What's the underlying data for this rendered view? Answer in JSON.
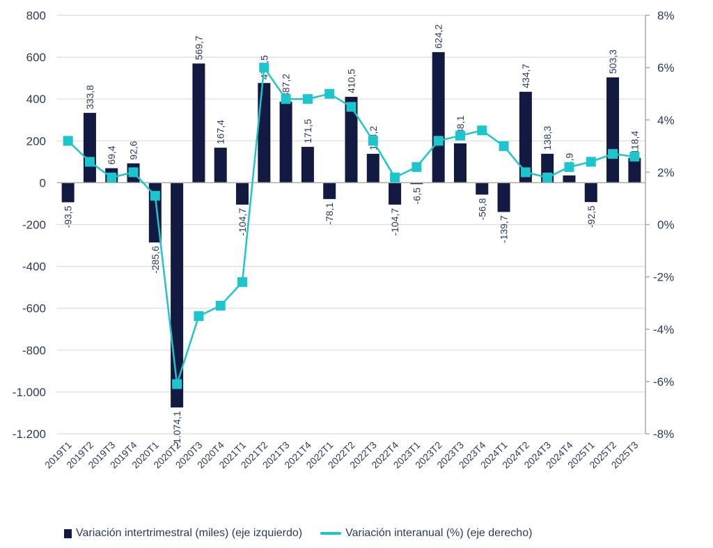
{
  "chart_data": {
    "type": "bar+line",
    "title": "",
    "categories": [
      "2019T1",
      "2019T2",
      "2019T3",
      "2019T4",
      "2020T1",
      "2020T2",
      "2020T3",
      "2020T4",
      "2021T1",
      "2021T2",
      "2021T3",
      "2021T4",
      "2022T1",
      "2022T2",
      "2022T3",
      "2022T4",
      "2023T1",
      "2023T2",
      "2023T3",
      "2023T4",
      "2024T1",
      "2024T2",
      "2024T3",
      "2024T4",
      "2025T1",
      "2025T2",
      "2025T3"
    ],
    "series": [
      {
        "name": "Variación intertrimestral (miles) (eje izquierdo)",
        "type": "bar",
        "axis": "left",
        "color": "#131a42",
        "values": [
          -93.5,
          333.8,
          69.4,
          92.6,
          -285.6,
          -1074.1,
          569.7,
          167.4,
          -104.7,
          476.5,
          387.2,
          171.5,
          -78.1,
          410.5,
          138.2,
          -104.7,
          -6.5,
          624.2,
          188.1,
          -56.8,
          -139.7,
          434.7,
          138.3,
          34.9,
          -92.5,
          503.3,
          118.4
        ],
        "labels": [
          "-93,5",
          "333,8",
          "69,4",
          "92,6",
          "-285,6",
          "-1.074,1",
          "569,7",
          "167,4",
          "-104,7",
          "476,5",
          "387,2",
          "171,5",
          "-78,1",
          "410,5",
          "138,2",
          "-104,7",
          "-6,5",
          "624,2",
          "188,1",
          "-56,8",
          "-139,7",
          "434,7",
          "138,3",
          "34,9",
          "-92,5",
          "503,3",
          "118,4"
        ]
      },
      {
        "name": "Variación interanual (%) (eje derecho)",
        "type": "line",
        "axis": "right",
        "color": "#1cc6cc",
        "values": [
          3.2,
          2.4,
          1.8,
          2.0,
          1.1,
          -6.1,
          -3.5,
          -3.1,
          -2.2,
          6.0,
          4.8,
          4.8,
          5.0,
          4.5,
          3.2,
          1.8,
          2.2,
          3.2,
          3.4,
          3.6,
          3.0,
          2.0,
          1.8,
          2.2,
          2.4,
          2.7,
          2.6
        ]
      }
    ],
    "left_axis": {
      "ylim": [
        -1200,
        800
      ],
      "ticks": [
        800,
        600,
        400,
        200,
        0,
        -200,
        -400,
        -600,
        -800,
        -1000,
        -1200
      ],
      "tick_labels": [
        "800",
        "600",
        "400",
        "200",
        "0",
        "-200",
        "-400",
        "-600",
        "-800",
        "-1.000",
        "-1.200"
      ]
    },
    "right_axis": {
      "ylim": [
        -8,
        8
      ],
      "ticks": [
        8,
        6,
        4,
        2,
        0,
        -2,
        -4,
        -6,
        -8
      ],
      "tick_labels": [
        "8%",
        "6%",
        "4%",
        "2%",
        "0%",
        "-2%",
        "-4%",
        "-6%",
        "-8%"
      ]
    },
    "xlabel": "",
    "ylabel": "",
    "grid": true,
    "legend_position": "bottom"
  },
  "legend": {
    "bar_label": "Variación intertrimestral (miles) (eje izquierdo)",
    "line_label": "Variación interanual (%) (eje derecho)"
  }
}
